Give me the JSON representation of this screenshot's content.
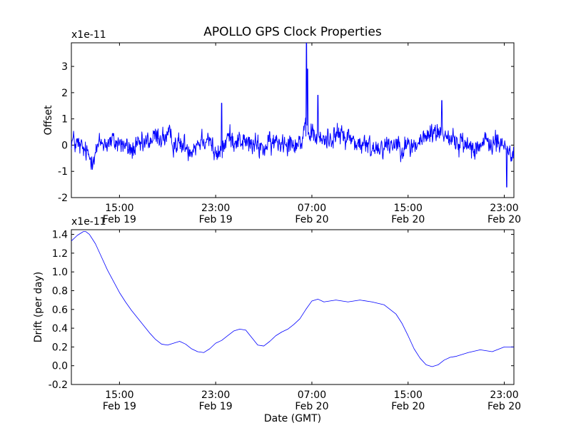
{
  "figure": {
    "title": "APOLLO GPS Clock Properties"
  },
  "chart_data": [
    {
      "type": "line",
      "title": "APOLLO GPS Clock Properties",
      "xlabel": "",
      "ylabel": "Offset",
      "y_scale_label": "x1e-11",
      "x_unit": "hours since 2015-02-19 11:00 GMT",
      "xlim": [
        0,
        36.8
      ],
      "ylim": [
        -2,
        3.9
      ],
      "yticks": [
        -2,
        -1,
        0,
        1,
        2,
        3
      ],
      "ytick_labels": [
        "-2",
        "-1",
        "0",
        "1",
        "2",
        "3"
      ],
      "xticks": [
        4,
        12,
        20,
        28,
        36
      ],
      "xtick_labels": [
        [
          "15:00",
          "Feb 19"
        ],
        [
          "23:00",
          "Feb 19"
        ],
        [
          "07:00",
          "Feb 20"
        ],
        [
          "15:00",
          "Feb 20"
        ],
        [
          "23:00",
          "Feb 20"
        ]
      ],
      "grid": false,
      "series": [
        {
          "name": "Offset",
          "color": "#0000ff",
          "noise_sd": 0.35,
          "x": [
            0,
            1,
            1.6,
            2.5,
            4,
            5,
            6,
            7,
            8,
            9,
            10,
            11,
            11.5,
            12,
            12.5,
            13,
            14,
            15,
            16,
            17,
            18,
            19,
            19.5,
            20,
            20.5,
            21,
            22,
            23,
            24,
            25,
            26,
            27,
            28,
            29,
            30,
            31,
            32,
            33,
            34,
            35,
            36,
            36.8
          ],
          "values": [
            0.2,
            -0.2,
            -0.5,
            0.1,
            0.1,
            -0.2,
            0.0,
            0.3,
            0.3,
            0.0,
            -0.1,
            0.3,
            0.3,
            -0.5,
            -0.2,
            0.3,
            0.2,
            0.0,
            -0.1,
            0.1,
            0.2,
            0.1,
            0.4,
            0.5,
            0.2,
            0.2,
            0.4,
            0.3,
            0.0,
            -0.1,
            0.0,
            0.1,
            -0.1,
            0.1,
            0.5,
            0.5,
            0.1,
            0.0,
            0.0,
            0.1,
            0.0,
            -0.4
          ],
          "spikes": [
            {
              "x": 19.55,
              "y": 3.9
            },
            {
              "x": 19.65,
              "y": 2.9
            },
            {
              "x": 20.5,
              "y": 1.9
            },
            {
              "x": 12.5,
              "y": 1.6
            },
            {
              "x": 30.8,
              "y": 1.7
            },
            {
              "x": 36.2,
              "y": -1.6
            }
          ]
        }
      ]
    },
    {
      "type": "line",
      "title": "",
      "xlabel": "Date (GMT)",
      "ylabel": "Drift (per day)",
      "y_scale_label": "x1e-11",
      "x_unit": "hours since 2015-02-19 11:00 GMT",
      "xlim": [
        0,
        36.8
      ],
      "ylim": [
        -0.2,
        1.45
      ],
      "yticks": [
        -0.2,
        0.0,
        0.2,
        0.4,
        0.6,
        0.8,
        1.0,
        1.2,
        1.4
      ],
      "ytick_labels": [
        "-0.2",
        "0.0",
        "0.2",
        "0.4",
        "0.6",
        "0.8",
        "1.0",
        "1.2",
        "1.4"
      ],
      "xticks": [
        4,
        12,
        20,
        28,
        36
      ],
      "xtick_labels": [
        [
          "15:00",
          "Feb 19"
        ],
        [
          "23:00",
          "Feb 19"
        ],
        [
          "07:00",
          "Feb 20"
        ],
        [
          "15:00",
          "Feb 20"
        ],
        [
          "23:00",
          "Feb 20"
        ]
      ],
      "grid": false,
      "series": [
        {
          "name": "Drift",
          "color": "#0000ff",
          "x": [
            0,
            0.5,
            1.0,
            1.2,
            1.5,
            2.0,
            2.5,
            3.0,
            3.5,
            4.0,
            4.5,
            5.0,
            5.5,
            6.0,
            6.5,
            7.0,
            7.5,
            8.0,
            8.5,
            9.0,
            9.5,
            10.0,
            10.5,
            11.0,
            11.5,
            12.0,
            12.5,
            13.0,
            13.5,
            14.0,
            14.5,
            15.0,
            15.5,
            16.0,
            16.5,
            17.0,
            17.5,
            18.0,
            18.5,
            19.0,
            19.5,
            20.0,
            20.5,
            21.0,
            22.0,
            23.0,
            24.0,
            25.0,
            26.0,
            27.0,
            27.5,
            28.0,
            28.5,
            29.0,
            29.5,
            30.0,
            30.5,
            31.0,
            31.5,
            32.0,
            33.0,
            34.0,
            35.0,
            36.0,
            36.8
          ],
          "values": [
            1.33,
            1.39,
            1.43,
            1.43,
            1.4,
            1.3,
            1.16,
            1.02,
            0.9,
            0.78,
            0.68,
            0.59,
            0.51,
            0.43,
            0.35,
            0.28,
            0.23,
            0.22,
            0.24,
            0.26,
            0.23,
            0.18,
            0.15,
            0.14,
            0.18,
            0.24,
            0.27,
            0.32,
            0.37,
            0.39,
            0.38,
            0.3,
            0.22,
            0.21,
            0.26,
            0.32,
            0.36,
            0.39,
            0.44,
            0.5,
            0.6,
            0.69,
            0.71,
            0.68,
            0.7,
            0.68,
            0.7,
            0.68,
            0.65,
            0.55,
            0.45,
            0.32,
            0.18,
            0.08,
            0.01,
            -0.01,
            0.01,
            0.06,
            0.09,
            0.1,
            0.14,
            0.17,
            0.15,
            0.2,
            0.2
          ]
        }
      ]
    }
  ]
}
